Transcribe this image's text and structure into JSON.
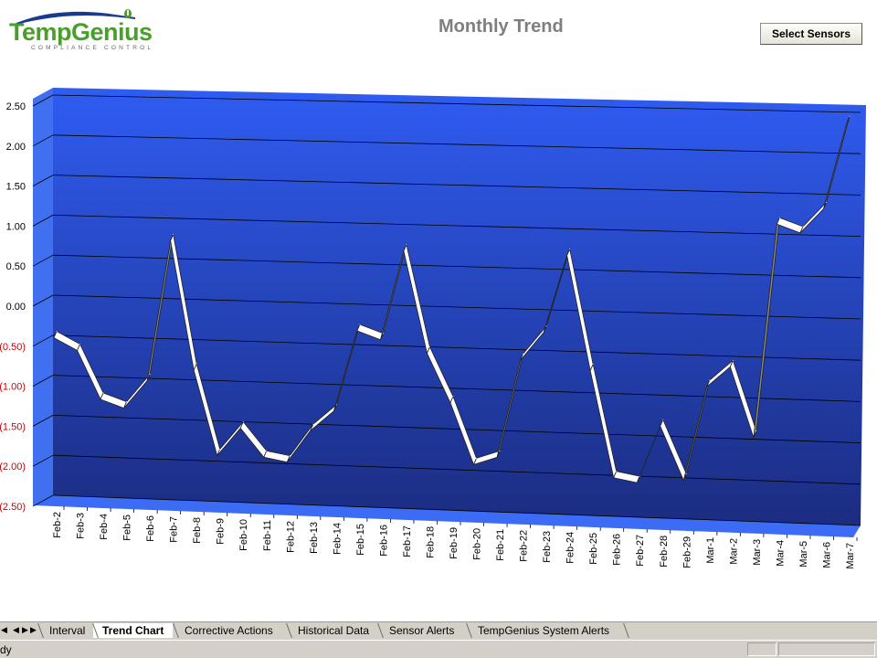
{
  "logo": {
    "text": "TempGenius",
    "tagline": "COMPLIANCE CONTROL"
  },
  "header": {
    "title": "Monthly Trend",
    "select_button": "Select Sensors"
  },
  "chart_data": {
    "type": "line",
    "style": "3d-ribbon",
    "title": "",
    "xlabel": "",
    "ylabel": "",
    "ylim": [
      -2.5,
      2.5
    ],
    "y_ticks": [
      "2.50",
      "2.00",
      "1.50",
      "1.00",
      "0.50",
      "0.00",
      "(0.50)",
      "(1.00)",
      "(1.50)",
      "(2.00)",
      "(2.50)"
    ],
    "negative_tick_color": "#cc0000",
    "grid": true,
    "colors": {
      "wall_top": "#2f5cf2",
      "wall_bottom": "#1b2c80",
      "ribbon": "#ffffff",
      "floor": "#3c6cf6"
    },
    "categories": [
      "Feb-2",
      "Feb-3",
      "Feb-4",
      "Feb-5",
      "Feb-6",
      "Feb-7",
      "Feb-8",
      "Feb-9",
      "Feb-10",
      "Feb-11",
      "Feb-12",
      "Feb-13",
      "Feb-14",
      "Feb-15",
      "Feb-16",
      "Feb-17",
      "Feb-18",
      "Feb-19",
      "Feb-20",
      "Feb-21",
      "Feb-22",
      "Feb-23",
      "Feb-24",
      "Feb-25",
      "Feb-26",
      "Feb-27",
      "Feb-28",
      "Feb-29",
      "Mar-1",
      "Mar-2",
      "Mar-3",
      "Mar-4",
      "Mar-5",
      "Mar-6",
      "Mar-7"
    ],
    "values": [
      -0.45,
      -0.6,
      -1.2,
      -1.3,
      -0.95,
      0.8,
      -0.8,
      -1.85,
      -1.5,
      -1.85,
      -1.9,
      -1.5,
      -1.25,
      -0.25,
      -0.35,
      0.75,
      -0.5,
      -1.1,
      -1.85,
      -1.75,
      -0.55,
      -0.2,
      0.75,
      -0.65,
      -1.95,
      -2.0,
      -1.3,
      -1.95,
      -0.8,
      -0.55,
      -1.4,
      1.2,
      1.1,
      1.4,
      2.45
    ]
  },
  "sheet_tabs": [
    "Interval",
    "Trend Chart",
    "Corrective Actions",
    "Historical Data",
    "Sensor Alerts",
    "TempGenius System Alerts"
  ],
  "active_tab": 1,
  "status": {
    "text": "dy"
  }
}
